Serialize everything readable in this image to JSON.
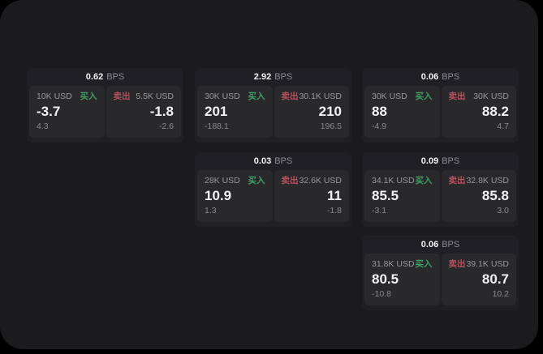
{
  "labels": {
    "bps_unit": "BPS",
    "buy": "买入",
    "sell": "卖出"
  },
  "colors": {
    "background": "#000000",
    "window_bg": "#1b1b1d",
    "card_bg": "#202024",
    "tile_bg": "#29292c",
    "buy_green": "#3f9e63",
    "sell_red": "#b8505f",
    "text_primary": "#f2f2f3",
    "text_secondary": "#98989c",
    "text_dim": "#8a8a8f"
  },
  "cards": [
    {
      "bps": "0.62",
      "buy": {
        "size": "10K USD",
        "price": "-3.7",
        "delta": "4.3"
      },
      "sell": {
        "size": "5.5K USD",
        "price": "-1.8",
        "delta": "-2.6"
      }
    },
    {
      "bps": "2.92",
      "buy": {
        "size": "30K USD",
        "price": "201",
        "delta": "-188.1"
      },
      "sell": {
        "size": "30.1K USD",
        "price": "210",
        "delta": "196.5"
      }
    },
    {
      "bps": "0.06",
      "buy": {
        "size": "30K USD",
        "price": "88",
        "delta": "-4.9"
      },
      "sell": {
        "size": "30K USD",
        "price": "88.2",
        "delta": "4.7"
      }
    },
    {
      "bps": "0.03",
      "buy": {
        "size": "28K USD",
        "price": "10.9",
        "delta": "1.3"
      },
      "sell": {
        "size": "32.6K USD",
        "price": "11",
        "delta": "-1.8"
      }
    },
    {
      "bps": "0.09",
      "buy": {
        "size": "34.1K USD",
        "price": "85.5",
        "delta": "-3.1"
      },
      "sell": {
        "size": "32.8K USD",
        "price": "85.8",
        "delta": "3.0"
      }
    },
    {
      "bps": "0.06",
      "buy": {
        "size": "31.8K USD",
        "price": "80.5",
        "delta": "-10.8"
      },
      "sell": {
        "size": "39.1K USD",
        "price": "80.7",
        "delta": "10.2"
      }
    }
  ]
}
